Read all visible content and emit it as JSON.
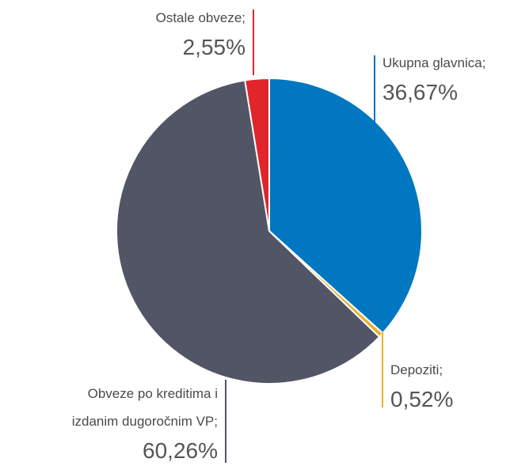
{
  "chart_data": {
    "type": "pie",
    "categories": [
      "Ukupna glavnica;",
      "Depoziti;",
      "Obveze po kreditima i izdanim dugoročnim VP;",
      "Ostale obveze;"
    ],
    "values": [
      36.67,
      0.52,
      60.26,
      2.55
    ],
    "value_labels": [
      "36,67%",
      "0,52%",
      "60,26%",
      "2,55%"
    ],
    "colors": [
      "#0077c0",
      "#e6b02e",
      "#525566",
      "#e0252c"
    ]
  }
}
